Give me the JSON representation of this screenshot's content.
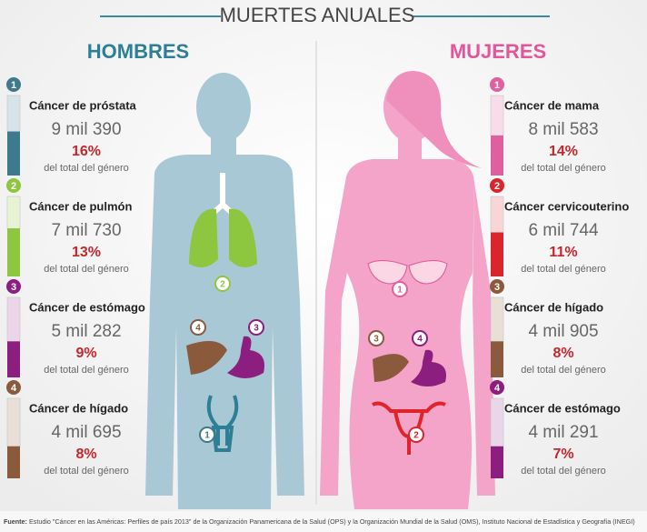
{
  "title": "MUERTES ANUALES",
  "groups": [
    {
      "title": "HOMBRES",
      "items": [
        {
          "rank": "1",
          "name": "Cáncer de próstata",
          "count": "9 mil 390",
          "percent": "16%",
          "note": "del total del género"
        },
        {
          "rank": "2",
          "name": "Cáncer de pulmón",
          "count": "7 mil 730",
          "percent": "13%",
          "note": "del total del género"
        },
        {
          "rank": "3",
          "name": "Cáncer de estómago",
          "count": "5 mil 282",
          "percent": "9%",
          "note": "del total del género"
        },
        {
          "rank": "4",
          "name": "Cáncer de hígado",
          "count": "4 mil 695",
          "percent": "8%",
          "note": "del total del género"
        }
      ]
    },
    {
      "title": "MUJERES",
      "items": [
        {
          "rank": "1",
          "name": "Cáncer de mama",
          "count": "8 mil 583",
          "percent": "14%",
          "note": "del total del género"
        },
        {
          "rank": "2",
          "name": "Cáncer cervicouterino",
          "count": "6 mil 744",
          "percent": "11%",
          "note": "del total del género"
        },
        {
          "rank": "3",
          "name": "Cáncer de hígado",
          "count": "4 mil 905",
          "percent": "8%",
          "note": "del total del género"
        },
        {
          "rank": "4",
          "name": "Cáncer de estómago",
          "count": "4 mil 291",
          "percent": "7%",
          "note": "del total del género"
        }
      ]
    }
  ],
  "footer": {
    "label": "Fuente:",
    "text": "Estudio \"Cáncer en las Américas: Perfiles de país 2013\" de la Organización Panamericana de la Salud (OPS) y la Organización Mundial de la Salud (OMS), Instituto Nacional de Estadística y Geografía (INEGI)"
  }
}
